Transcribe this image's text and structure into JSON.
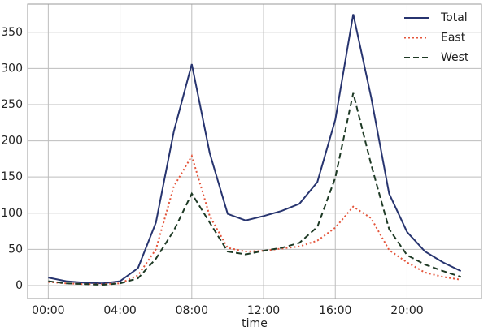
{
  "chart_data": {
    "type": "line",
    "x_label": "time",
    "x": [
      0,
      1,
      2,
      3,
      4,
      5,
      6,
      7,
      8,
      9,
      10,
      11,
      12,
      13,
      14,
      15,
      16,
      17,
      18,
      19,
      20,
      21,
      22,
      23
    ],
    "series": [
      {
        "name": "Total",
        "color": "#27346f",
        "dash": "solid",
        "values": [
          11,
          6,
          4,
          3,
          6,
          24,
          87,
          213,
          306,
          183,
          99,
          90,
          96,
          103,
          113,
          143,
          229,
          375,
          260,
          127,
          74,
          47,
          32,
          20
        ]
      },
      {
        "name": "East",
        "color": "#e4553b",
        "dash": "dotted",
        "values": [
          5,
          3,
          2,
          2,
          3,
          14,
          50,
          137,
          179,
          96,
          52,
          47,
          48,
          51,
          54,
          62,
          80,
          109,
          93,
          49,
          32,
          18,
          12,
          8
        ]
      },
      {
        "name": "West",
        "color": "#1e3a25",
        "dash": "dashed",
        "values": [
          6,
          3,
          2,
          1,
          3,
          10,
          37,
          76,
          127,
          87,
          47,
          43,
          48,
          52,
          59,
          81,
          149,
          266,
          167,
          78,
          42,
          29,
          20,
          12
        ]
      }
    ],
    "xlim": [
      -1.15,
      24.15
    ],
    "xticks": [
      {
        "value": 0,
        "label": "00:00"
      },
      {
        "value": 4,
        "label": "04:00"
      },
      {
        "value": 8,
        "label": "08:00"
      },
      {
        "value": 12,
        "label": "12:00"
      },
      {
        "value": 16,
        "label": "16:00"
      },
      {
        "value": 20,
        "label": "20:00"
      }
    ],
    "ylim": [
      -18,
      389
    ],
    "yticks": [
      0,
      50,
      100,
      150,
      200,
      250,
      300,
      350
    ],
    "grid": true,
    "legend": "upper right"
  }
}
